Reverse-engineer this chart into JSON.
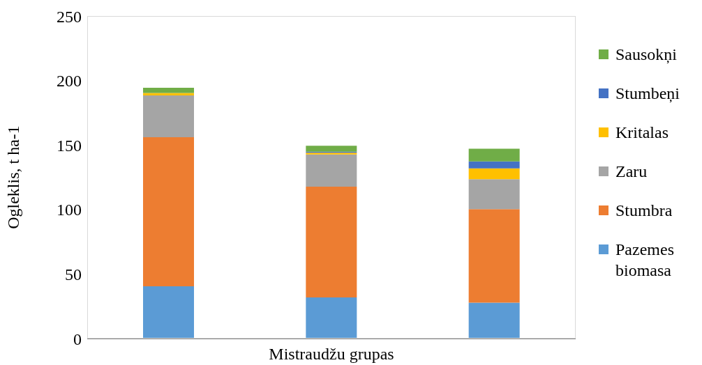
{
  "chart_data": {
    "type": "bar",
    "stacked": true,
    "xlabel": "Mistraudžu grupas",
    "ylabel": "Ogleklis, t ha-1",
    "categories": [
      null,
      null,
      null
    ],
    "ylim": [
      0,
      250
    ],
    "yticks": [
      0,
      50,
      100,
      150,
      200,
      250
    ],
    "grid": false,
    "legend": "right",
    "series": [
      {
        "name": "Pazemes biomasa",
        "color": "#5b9bd5",
        "values": [
          40.5,
          31.9,
          27.8
        ]
      },
      {
        "name": "Stumbra",
        "color": "#ed7d31",
        "values": [
          115.5,
          85.8,
          72.5
        ]
      },
      {
        "name": "Zaru",
        "color": "#a5a5a5",
        "values": [
          32.4,
          25.0,
          23.2
        ]
      },
      {
        "name": "Kritalas",
        "color": "#ffc000",
        "values": [
          2.0,
          1.3,
          8.4
        ]
      },
      {
        "name": "Stumbeņi",
        "color": "#4472c4",
        "values": [
          0,
          0.9,
          5.4
        ]
      },
      {
        "name": "Sausokņi",
        "color": "#70ad47",
        "values": [
          4.0,
          4.5,
          9.9
        ]
      }
    ]
  }
}
